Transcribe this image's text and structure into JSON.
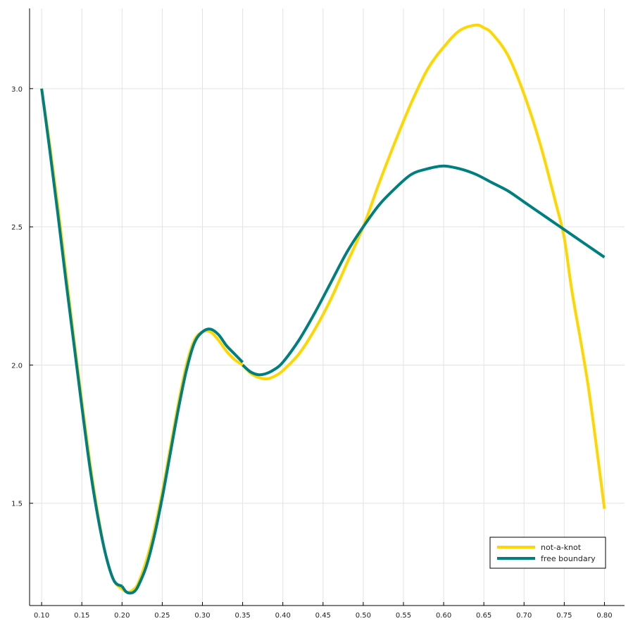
{
  "chart_data": {
    "type": "line",
    "title": "",
    "xlabel": "",
    "ylabel": "",
    "xlim": [
      0.085,
      0.825
    ],
    "ylim": [
      1.13,
      3.29
    ],
    "xticks": [
      0.1,
      0.15,
      0.2,
      0.25,
      0.3,
      0.35,
      0.4,
      0.45,
      0.5,
      0.55,
      0.6,
      0.65,
      0.7,
      0.75,
      0.8
    ],
    "xtick_labels": [
      "0.10",
      "0.15",
      "0.20",
      "0.25",
      "0.30",
      "0.35",
      "0.40",
      "0.45",
      "0.50",
      "0.55",
      "0.60",
      "0.65",
      "0.70",
      "0.75",
      "0.80"
    ],
    "yticks": [
      1.5,
      2.0,
      2.5,
      3.0
    ],
    "ytick_labels": [
      "1.5",
      "2.0",
      "2.5",
      "3.0"
    ],
    "grid": true,
    "legend_position": "bottom-right",
    "series": [
      {
        "name": "not-a-knot",
        "color": "#FFD700",
        "segments": [
          {
            "x": [
              0.1,
              0.11,
              0.12,
              0.13,
              0.14,
              0.15,
              0.16,
              0.17,
              0.18,
              0.19,
              0.2,
              0.205,
              0.21,
              0.215,
              0.22,
              0.23,
              0.24,
              0.25,
              0.26,
              0.27,
              0.28,
              0.29,
              0.3,
              0.31,
              0.32,
              0.33,
              0.34,
              0.35
            ],
            "y": [
              3.0,
              2.8,
              2.58,
              2.34,
              2.1,
              1.87,
              1.65,
              1.46,
              1.31,
              1.22,
              1.19,
              1.18,
              1.18,
              1.19,
              1.21,
              1.29,
              1.4,
              1.54,
              1.7,
              1.86,
              2.0,
              2.09,
              2.12,
              2.12,
              2.09,
              2.05,
              2.02,
              2.0
            ]
          },
          {
            "x": [
              0.35,
              0.36,
              0.37,
              0.38,
              0.39,
              0.4,
              0.42,
              0.44,
              0.46,
              0.48,
              0.5,
              0.52,
              0.54,
              0.56,
              0.58,
              0.6,
              0.62,
              0.64,
              0.65,
              0.66,
              0.68,
              0.7,
              0.72,
              0.74,
              0.75,
              0.76,
              0.78,
              0.8
            ],
            "y": [
              2.0,
              1.97,
              1.955,
              1.95,
              1.96,
              1.98,
              2.04,
              2.13,
              2.24,
              2.37,
              2.5,
              2.66,
              2.81,
              2.95,
              3.07,
              3.15,
              3.21,
              3.23,
              3.22,
              3.2,
              3.12,
              2.98,
              2.8,
              2.58,
              2.46,
              2.26,
              1.92,
              1.48
            ]
          }
        ]
      },
      {
        "name": "free boundary",
        "color": "#007F80",
        "segments": [
          {
            "x": [
              0.1,
              0.11,
              0.12,
              0.13,
              0.14,
              0.15,
              0.16,
              0.17,
              0.18,
              0.19,
              0.2
            ],
            "y": [
              3.0,
              2.78,
              2.55,
              2.31,
              2.08,
              1.85,
              1.63,
              1.45,
              1.31,
              1.22,
              1.2
            ]
          },
          {
            "x": [
              0.2,
              0.205,
              0.21,
              0.215,
              0.22,
              0.23,
              0.24,
              0.25,
              0.26,
              0.27,
              0.28,
              0.29,
              0.3,
              0.31,
              0.32,
              0.33,
              0.34,
              0.35
            ],
            "y": [
              1.2,
              1.18,
              1.175,
              1.18,
              1.2,
              1.27,
              1.38,
              1.52,
              1.68,
              1.84,
              1.98,
              2.08,
              2.12,
              2.13,
              2.11,
              2.07,
              2.04,
              2.01
            ]
          },
          {
            "x": [
              0.35,
              0.36,
              0.37,
              0.38,
              0.39,
              0.4,
              0.42,
              0.44,
              0.46,
              0.48,
              0.5,
              0.52,
              0.54,
              0.56,
              0.58,
              0.6,
              0.62,
              0.64,
              0.66,
              0.68,
              0.7,
              0.72,
              0.74,
              0.75,
              0.76,
              0.78,
              0.8
            ],
            "y": [
              2.0,
              1.975,
              1.965,
              1.97,
              1.985,
              2.01,
              2.09,
              2.19,
              2.3,
              2.41,
              2.5,
              2.58,
              2.64,
              2.69,
              2.71,
              2.72,
              2.71,
              2.69,
              2.66,
              2.63,
              2.59,
              2.55,
              2.51,
              2.49,
              2.47,
              2.43,
              2.39
            ]
          }
        ]
      }
    ]
  }
}
